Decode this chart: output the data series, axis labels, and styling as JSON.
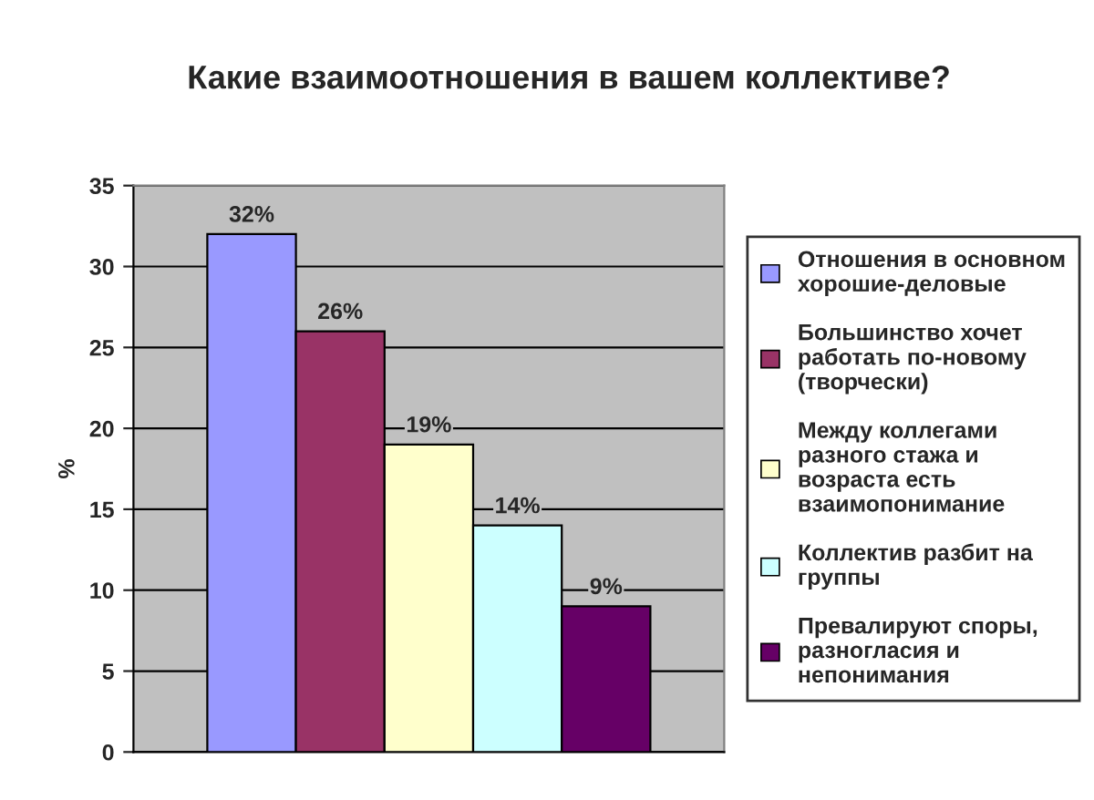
{
  "chart_data": {
    "type": "bar",
    "title": "Какие взаимоотношения в вашем коллективе?",
    "ylabel": "%",
    "categories": [
      null
    ],
    "series": [
      {
        "name": "Отношения в основном хорошие-деловые",
        "color": "#9999ff",
        "values": [
          32
        ],
        "value_labels": [
          "32%"
        ]
      },
      {
        "name": "Большинство хочет работать по-новому (творчески)",
        "color": "#993366",
        "values": [
          26
        ],
        "value_labels": [
          "26%"
        ]
      },
      {
        "name": "Между коллегами разного стажа и возраста есть взаимопонимание",
        "color": "#ffffcc",
        "values": [
          19
        ],
        "value_labels": [
          "19%"
        ]
      },
      {
        "name": "Коллектив разбит на группы",
        "color": "#ccffff",
        "values": [
          14
        ],
        "value_labels": [
          "14%"
        ]
      },
      {
        "name": "Превалируют споры, разногласия и непонимания",
        "color": "#660066",
        "values": [
          9
        ],
        "value_labels": [
          "9%"
        ]
      }
    ],
    "ylim": [
      0,
      35
    ],
    "yticks": [
      0,
      5,
      10,
      15,
      20,
      25,
      30,
      35
    ],
    "grid": "y",
    "legend": "right"
  }
}
